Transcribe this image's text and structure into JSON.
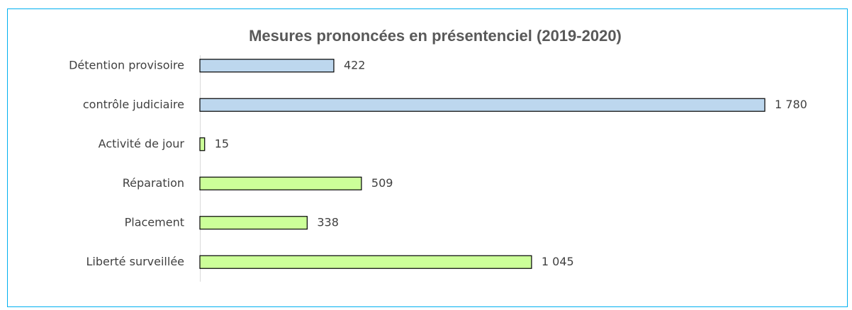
{
  "chart_data": {
    "type": "hbar",
    "title": "Mesures prononcées en présentenciel (2019-2020)",
    "categories": [
      "Détention provisoire",
      "contrôle judiciaire",
      "Activité de jour",
      "Réparation",
      "Placement",
      "Liberté surveillée"
    ],
    "values": [
      422,
      1780,
      15,
      509,
      338,
      1045
    ],
    "value_labels": [
      "422",
      "1 780",
      "15",
      "509",
      "338",
      "1 045"
    ],
    "colors": [
      "#bdd7ee",
      "#bdd7ee",
      "#ccff99",
      "#ccff99",
      "#ccff99",
      "#ccff99"
    ]
  }
}
